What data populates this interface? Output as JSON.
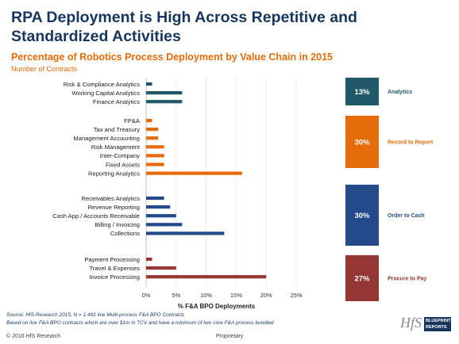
{
  "title": "RPA Deployment is High Across Repetitive and Standardized Activities",
  "subtitle": "Percentage of Robotics Process Deployment by Value Chain in 2015",
  "subnote": "Number of Contracts",
  "chart_data": {
    "type": "bar",
    "orientation": "horizontal",
    "xlabel": "% F&A BPO Deployments",
    "xlim": [
      0,
      25
    ],
    "xticks": [
      "0%",
      "5%",
      "10%",
      "15%",
      "20%",
      "25%"
    ],
    "groups": [
      {
        "name": "Analytics",
        "percent": "13%",
        "color": "#215968",
        "categories": [
          "Risk & Compliance Analytics",
          "Working Capital Analytics",
          "Finance Analytics"
        ],
        "values": [
          1,
          6,
          6
        ]
      },
      {
        "name": "Record to Report",
        "percent": "30%",
        "color": "#e46c0a",
        "categories": [
          "FP&A",
          "Tax and Treasury",
          "Management Accounting",
          "Risk Management",
          "Inter-Company",
          "Fixed Assets",
          "Reporting Analytics"
        ],
        "values": [
          1,
          2,
          2,
          3,
          3,
          3,
          16
        ]
      },
      {
        "name": "Order to Cash",
        "percent": "30%",
        "color": "#254a8c",
        "categories": [
          "Receivables Analytics",
          "Revenue Reporting",
          "Cash App / Accounts Receivable",
          "Billing / Invoicing",
          "Collections"
        ],
        "values": [
          3,
          4,
          5,
          6,
          13
        ]
      },
      {
        "name": "Procure to Pay",
        "percent": "27%",
        "color": "#953735",
        "categories": [
          "Payment Processing",
          "Travel & Expenses",
          "Invoice Processing"
        ],
        "values": [
          1,
          5,
          20
        ]
      }
    ]
  },
  "source_line1": "Source: HfS Research 2015, N = 1,491 live Multi-process F&A BPO Contracts",
  "source_line2": "Based on live F&A BPO contracts which are over $1m in TCV and have a minimum of two core F&A process bundled",
  "footer_left": "© 2016 HfS Research",
  "footer_center": "Proprietary",
  "logo": {
    "hfs": "HfS",
    "box": "BLUEPRINT REPORTS"
  }
}
